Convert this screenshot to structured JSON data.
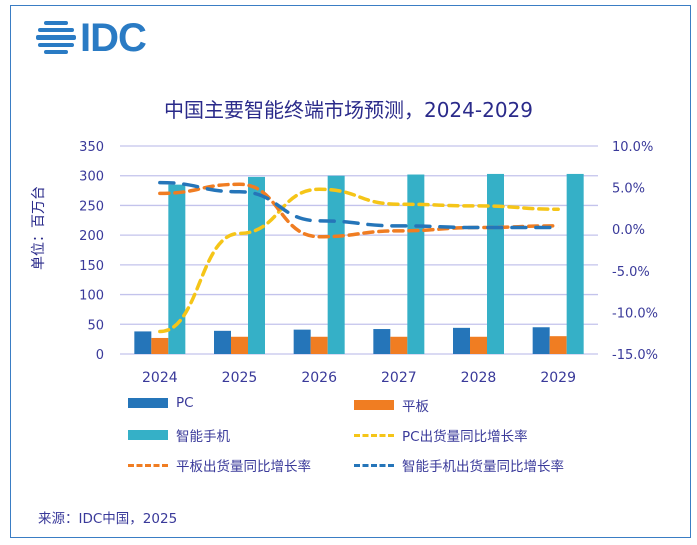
{
  "logo": {
    "text": "IDC",
    "icon": "idc-globe-icon",
    "color": "#2a7bc4"
  },
  "source": "来源：IDC中国，2025",
  "chart_data": {
    "type": "bar",
    "title": "中国主要智能终端市场预测，2024-2029",
    "xlabel": "",
    "ylabel": "单位：百万台",
    "categories": [
      "2024",
      "2025",
      "2026",
      "2027",
      "2028",
      "2029"
    ],
    "ylim": [
      0,
      350
    ],
    "yticks": [
      "0",
      "50",
      "100",
      "150",
      "200",
      "250",
      "300",
      "350"
    ],
    "y2lim": [
      -15.0,
      10.0
    ],
    "y2ticks": [
      "-15.0%",
      "-10.0%",
      "-5.0%",
      "0.0%",
      "5.0%",
      "10.0%"
    ],
    "grid": true,
    "legend_position": "bottom",
    "series": [
      {
        "name": "PC",
        "type": "bar",
        "axis": "left",
        "color": "#2575b9",
        "values": [
          38,
          39,
          41,
          42,
          44,
          45
        ]
      },
      {
        "name": "平板",
        "type": "bar",
        "axis": "left",
        "color": "#f07d22",
        "values": [
          27,
          29,
          29,
          29,
          29,
          30
        ]
      },
      {
        "name": "智能手机",
        "type": "bar",
        "axis": "left",
        "color": "#35b0c7",
        "values": [
          285,
          298,
          300,
          302,
          303,
          303
        ]
      },
      {
        "name": "PC出货量同比增长率",
        "type": "line",
        "axis": "right",
        "style": "dashed",
        "color": "#f5c518",
        "values": [
          -12.3,
          -0.5,
          4.8,
          3.0,
          2.8,
          2.4
        ]
      },
      {
        "name": "平板出货量同比增长率",
        "type": "line",
        "axis": "right",
        "style": "dashed",
        "color": "#f07d22",
        "values": [
          4.3,
          5.4,
          -0.9,
          -0.2,
          0.2,
          0.4
        ]
      },
      {
        "name": "智能手机出货量同比增长率",
        "type": "line",
        "axis": "right",
        "style": "long-dashed",
        "color": "#2575b9",
        "values": [
          5.6,
          4.5,
          1.0,
          0.4,
          0.2,
          0.2
        ]
      }
    ]
  }
}
